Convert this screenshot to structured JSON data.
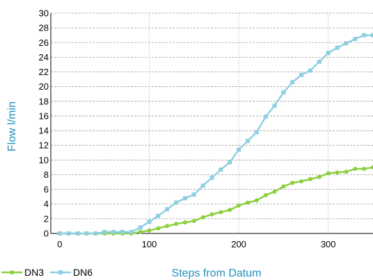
{
  "chart_data": {
    "type": "line",
    "title": "",
    "xlabel": "Steps from Datum",
    "ylabel": "Flow l/min",
    "xlim": [
      -10,
      350
    ],
    "ylim": [
      0,
      30
    ],
    "x_ticks": [
      0,
      100,
      200,
      300
    ],
    "y_ticks": [
      0,
      2,
      4,
      6,
      8,
      10,
      12,
      14,
      16,
      18,
      20,
      22,
      24,
      26,
      28,
      30
    ],
    "grid": {
      "x": "dotted-vertical",
      "y": "dashed-horizontal"
    },
    "legend": "bottom-left",
    "series": [
      {
        "name": "DN3",
        "color": "#8dcf3f",
        "marker": "circle",
        "points": [
          [
            0,
            0
          ],
          [
            10,
            0
          ],
          [
            20,
            0
          ],
          [
            30,
            0
          ],
          [
            40,
            0
          ],
          [
            50,
            0
          ],
          [
            60,
            0
          ],
          [
            70,
            0
          ],
          [
            80,
            0
          ],
          [
            90,
            0.2
          ],
          [
            100,
            0.4
          ],
          [
            110,
            0.7
          ],
          [
            120,
            1.0
          ],
          [
            130,
            1.3
          ],
          [
            140,
            1.5
          ],
          [
            150,
            1.7
          ],
          [
            160,
            2.2
          ],
          [
            170,
            2.6
          ],
          [
            180,
            2.9
          ],
          [
            190,
            3.2
          ],
          [
            200,
            3.8
          ],
          [
            210,
            4.2
          ],
          [
            220,
            4.5
          ],
          [
            230,
            5.2
          ],
          [
            240,
            5.7
          ],
          [
            250,
            6.4
          ],
          [
            260,
            6.9
          ],
          [
            270,
            7.1
          ],
          [
            280,
            7.4
          ],
          [
            290,
            7.7
          ],
          [
            300,
            8.2
          ],
          [
            310,
            8.3
          ],
          [
            320,
            8.4
          ],
          [
            330,
            8.8
          ],
          [
            340,
            8.8
          ],
          [
            350,
            9.0
          ]
        ]
      },
      {
        "name": "DN6",
        "color": "#8ecfe0",
        "marker": "square",
        "points": [
          [
            0,
            0
          ],
          [
            10,
            0
          ],
          [
            20,
            0
          ],
          [
            30,
            0
          ],
          [
            40,
            0
          ],
          [
            50,
            0.2
          ],
          [
            60,
            0.2
          ],
          [
            70,
            0.2
          ],
          [
            80,
            0.2
          ],
          [
            90,
            0.8
          ],
          [
            100,
            1.6
          ],
          [
            110,
            2.4
          ],
          [
            120,
            3.3
          ],
          [
            130,
            4.2
          ],
          [
            140,
            4.8
          ],
          [
            150,
            5.3
          ],
          [
            160,
            6.5
          ],
          [
            170,
            7.6
          ],
          [
            180,
            8.7
          ],
          [
            190,
            9.7
          ],
          [
            200,
            11.4
          ],
          [
            210,
            12.6
          ],
          [
            220,
            13.8
          ],
          [
            230,
            15.9
          ],
          [
            240,
            17.4
          ],
          [
            250,
            19.2
          ],
          [
            260,
            20.6
          ],
          [
            270,
            21.6
          ],
          [
            280,
            22.2
          ],
          [
            290,
            23.4
          ],
          [
            300,
            24.6
          ],
          [
            310,
            25.3
          ],
          [
            320,
            25.9
          ],
          [
            330,
            26.5
          ],
          [
            340,
            27.0
          ],
          [
            350,
            27.0
          ]
        ]
      }
    ]
  },
  "colors": {
    "axis_title": "#1f8fbf",
    "grid": "#9a9a9a",
    "axis_line": "#000000"
  }
}
